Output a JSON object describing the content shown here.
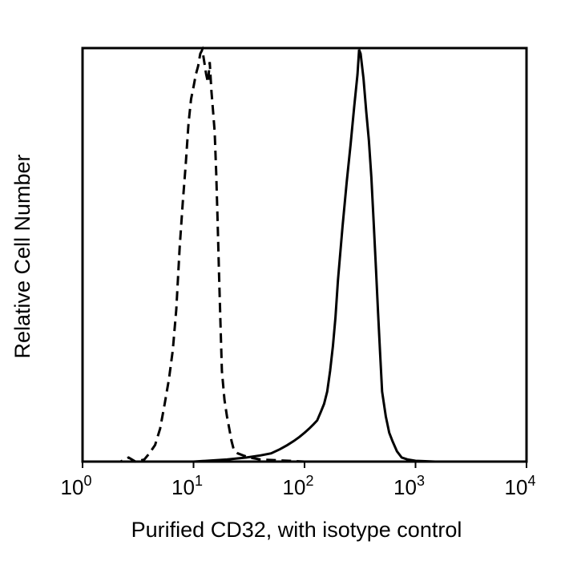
{
  "chart_data": {
    "type": "line",
    "xlabel": "Purified CD32, with isotype control",
    "ylabel": "Relative Cell Number",
    "x_scale": "log",
    "xlim": [
      1,
      10000
    ],
    "ylim": [
      0,
      100
    ],
    "x_ticks": [
      {
        "value": 1,
        "base": "10",
        "exp": "0"
      },
      {
        "value": 10,
        "base": "10",
        "exp": "1"
      },
      {
        "value": 100,
        "base": "10",
        "exp": "2"
      },
      {
        "value": 1000,
        "base": "10",
        "exp": "3"
      },
      {
        "value": 10000,
        "base": "10",
        "exp": "4"
      }
    ],
    "grid": false,
    "series": [
      {
        "style": "dashed",
        "color": "#000000",
        "x": [
          1,
          2.2,
          2.6,
          3.0,
          3.6,
          4.0,
          4.5,
          5.0,
          5.5,
          6.0,
          6.5,
          7.0,
          7.5,
          8.0,
          8.5,
          9.0,
          9.5,
          10.0,
          10.5,
          11.0,
          11.5,
          12.0,
          12.5,
          13.0,
          13.5,
          14.0,
          14.5,
          15.0,
          15.5,
          16.0,
          16.5,
          17.0,
          17.5,
          18.0,
          19.0,
          20.0,
          21.0,
          22.0,
          23.0,
          25.0,
          28.0,
          32.0,
          40.0,
          60.0,
          100.0,
          10000
        ],
        "y": [
          0,
          0,
          1,
          0,
          0.5,
          2,
          4,
          8,
          14,
          20,
          27,
          37,
          52,
          63,
          72,
          82,
          88,
          91,
          94,
          96,
          99,
          100,
          97,
          94,
          92,
          97,
          90,
          85,
          80,
          70,
          58,
          45,
          33,
          22,
          15,
          11,
          8,
          5,
          3,
          2,
          1.5,
          1,
          0.5,
          0.3,
          0,
          0
        ]
      },
      {
        "style": "solid",
        "color": "#000000",
        "x": [
          1,
          10,
          20,
          30,
          40,
          50,
          60,
          70,
          80,
          90,
          100,
          110,
          120,
          130,
          140,
          150,
          160,
          170,
          180,
          190,
          200,
          220,
          240,
          260,
          280,
          300,
          310,
          320,
          340,
          360,
          380,
          400,
          420,
          440,
          460,
          480,
          500,
          540,
          580,
          620,
          680,
          750,
          850,
          1000,
          1500,
          10000
        ],
        "y": [
          0,
          0,
          0.5,
          1,
          1.5,
          2,
          3,
          4,
          5,
          6,
          7,
          8,
          9,
          10,
          12,
          14,
          17,
          22,
          28,
          35,
          44,
          57,
          68,
          77,
          86,
          94,
          100,
          99,
          93,
          85,
          78,
          69,
          58,
          47,
          36,
          26,
          17,
          11,
          7,
          5,
          2.5,
          1,
          0.5,
          0.2,
          0,
          0
        ]
      }
    ]
  }
}
